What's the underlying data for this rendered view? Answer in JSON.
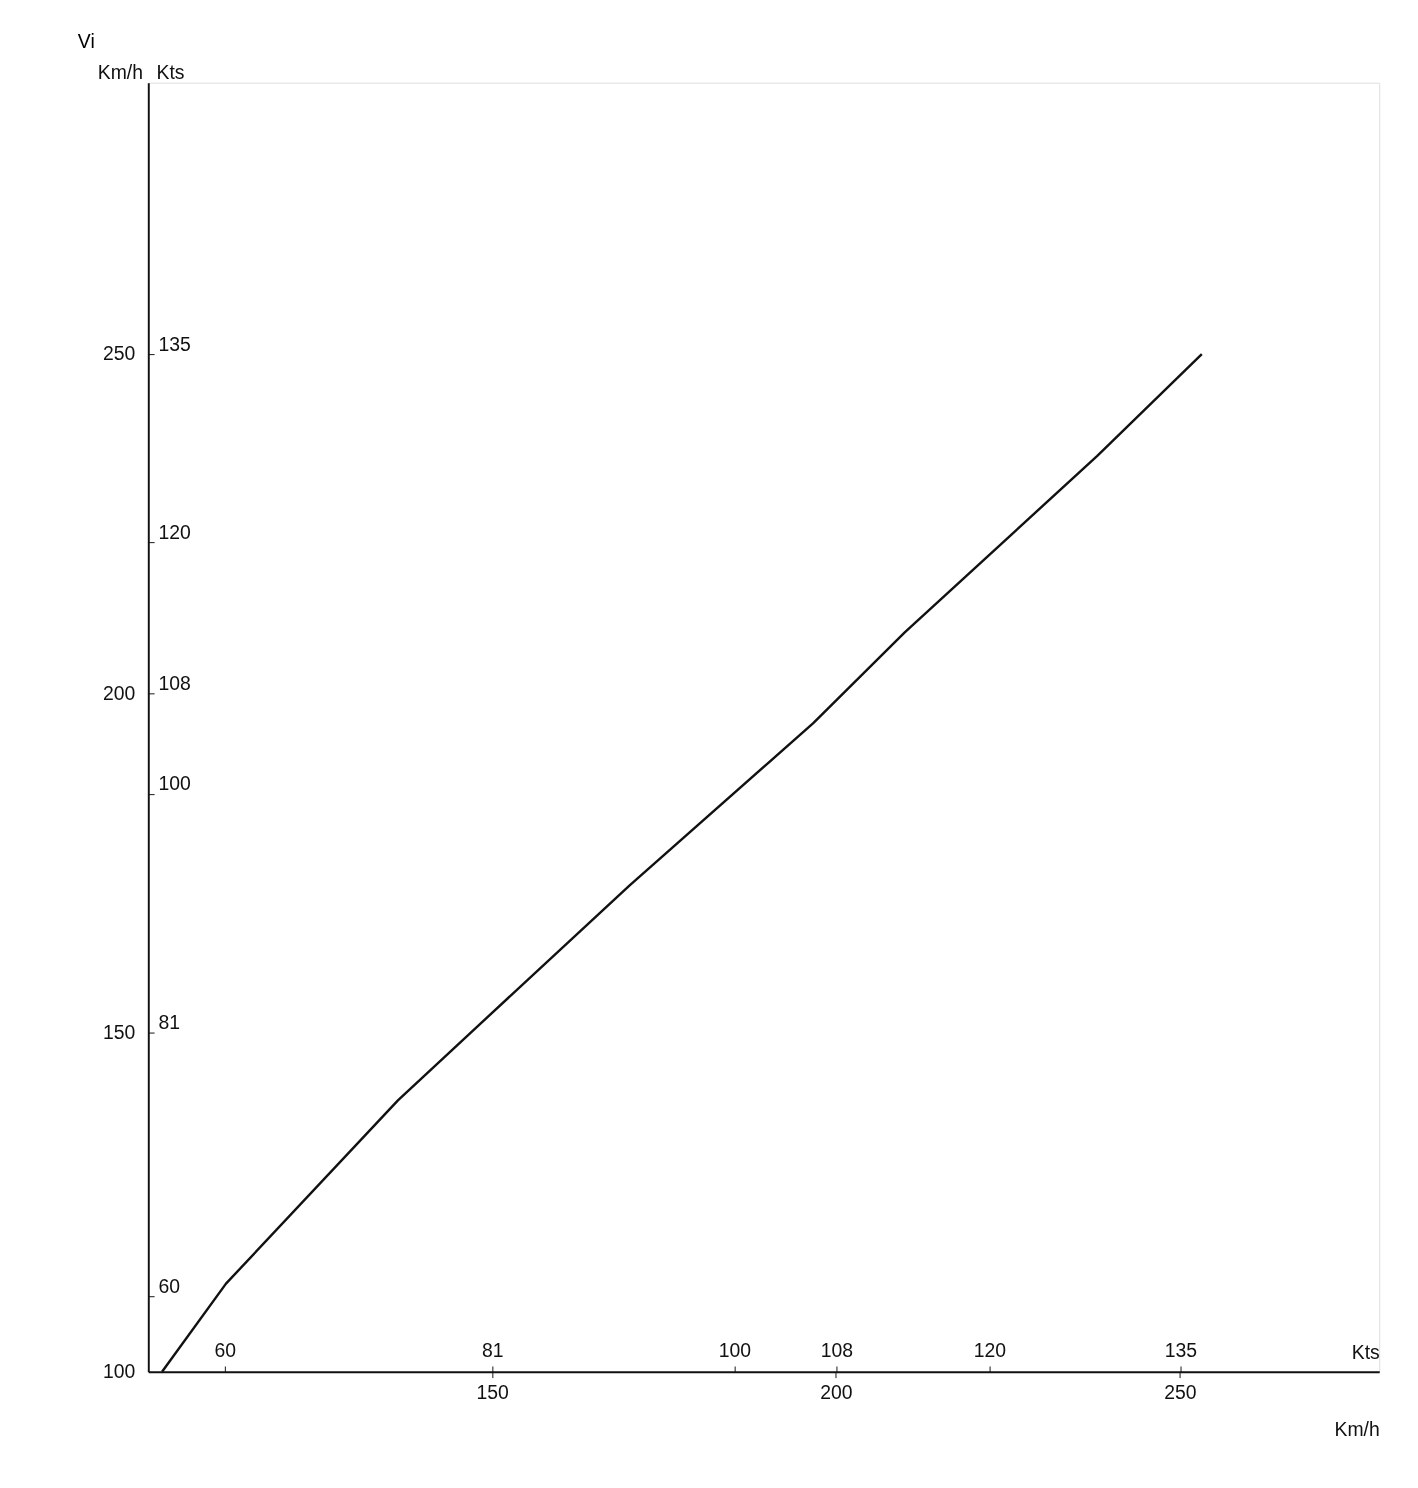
{
  "chart_data": {
    "type": "line",
    "title": "Vi",
    "xlabel": "Km/h",
    "x2label": "Kts",
    "ylabel": "Km/h",
    "y2label": "Kts",
    "xlim": [
      100,
      279
    ],
    "xticks": [
      150,
      200,
      250
    ],
    "x2lim": [
      54,
      150.6
    ],
    "x2ticks": [
      60,
      81,
      100,
      108,
      120,
      135
    ],
    "ylim": [
      100,
      290
    ],
    "yticks": [
      100,
      150,
      200,
      250
    ],
    "y2lim": [
      54,
      156.6
    ],
    "y2ticks": [
      60,
      81,
      100,
      108,
      120,
      135
    ],
    "grid": false,
    "legend": false,
    "line_style": "solid",
    "series": [
      {
        "color": "#111111",
        "x": [
          102,
          111.3,
          136.3,
          146.9,
          170,
          196.7,
          210,
          238,
          253.2
        ],
        "values": [
          100,
          113,
          140,
          150,
          171.7,
          195.6,
          209,
          235,
          250
        ]
      }
    ]
  }
}
